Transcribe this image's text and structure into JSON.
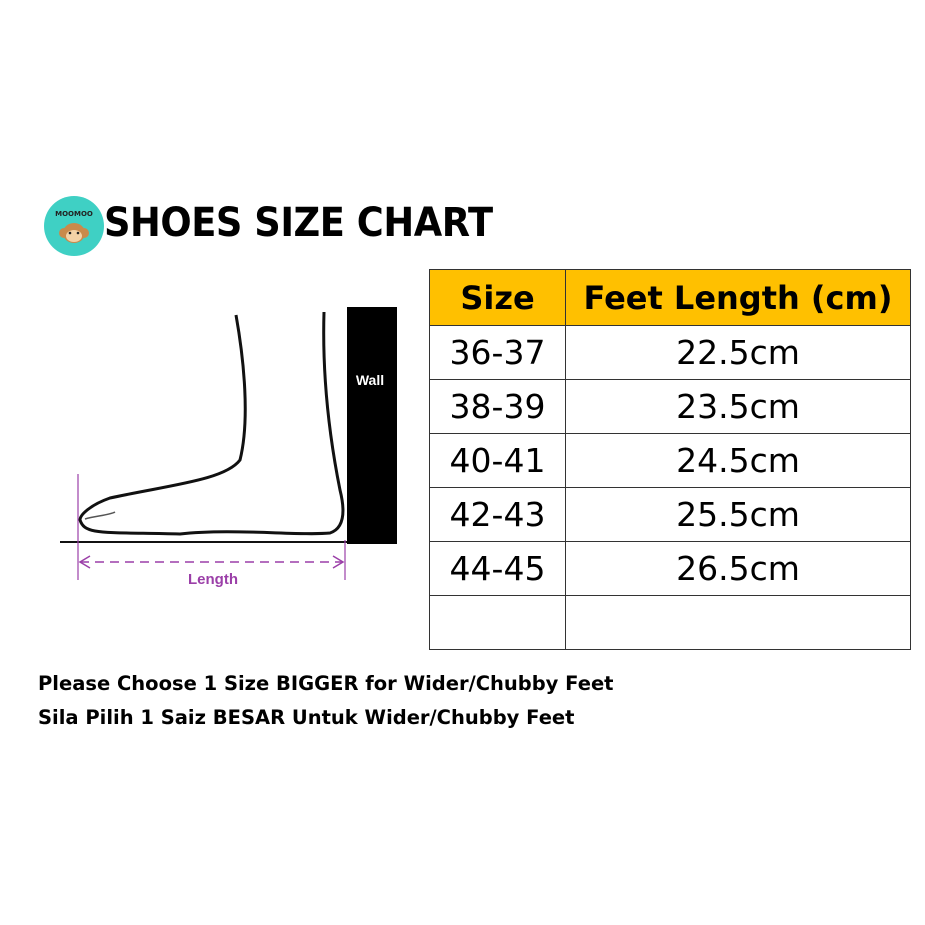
{
  "logo": {
    "text": "MOOMOO",
    "color": "#3fd0c4"
  },
  "title": "SHOES SIZE CHART",
  "diagram": {
    "wall_label": "Wall",
    "length_label": "Length",
    "accent_color": "#9b3fa8"
  },
  "table": {
    "header_color": "#ffc000",
    "headers": [
      "Size",
      "Feet Length (cm)"
    ],
    "rows": [
      [
        "36-37",
        "22.5cm"
      ],
      [
        "38-39",
        "23.5cm"
      ],
      [
        "40-41",
        "24.5cm"
      ],
      [
        "42-43",
        "25.5cm"
      ],
      [
        "44-45",
        "26.5cm"
      ],
      [
        "",
        ""
      ]
    ]
  },
  "notes": [
    "Please Choose 1 Size BIGGER for Wider/Chubby Feet",
    "Sila Pilih 1 Saiz BESAR Untuk Wider/Chubby Feet"
  ]
}
